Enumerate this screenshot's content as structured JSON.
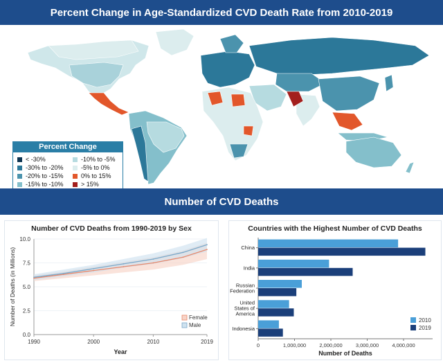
{
  "banner_map": "Percent Change in Age-Standardized CVD Death Rate from 2010-2019",
  "banner_deaths": "Number of CVD Deaths",
  "legend": {
    "title": "Percent Change",
    "items": [
      {
        "label": "< -30%",
        "color": "#0e3552"
      },
      {
        "label": "-30% to -20%",
        "color": "#2c7899"
      },
      {
        "label": "-20% to -15%",
        "color": "#4b93ad"
      },
      {
        "label": "-15% to  -10%",
        "color": "#84bfcb"
      },
      {
        "label": "-10% to -5%",
        "color": "#b6dbe0"
      },
      {
        "label": "-5% to 0%",
        "color": "#dcedee"
      },
      {
        "label": "0% to 15%",
        "color": "#e2572b"
      },
      {
        "label": "> 15%",
        "color": "#a31f1d"
      }
    ]
  },
  "chart_data": [
    {
      "type": "line",
      "title": "Number of CVD Deaths from 1990-2019 by Sex",
      "xlabel": "Year",
      "ylabel": "Number of Deaths (in Millions)",
      "x": [
        1990,
        1995,
        2000,
        2005,
        2010,
        2015,
        2019
      ],
      "x_ticks": [
        1990,
        2000,
        2010,
        2019
      ],
      "y_ticks": [
        "0.0",
        "2.5",
        "5.0",
        "7.5",
        "10.0"
      ],
      "xlim": [
        1990,
        2019
      ],
      "ylim": [
        0,
        10
      ],
      "series": [
        {
          "name": "Female",
          "color": "#e8886b",
          "band_color": "#f7d4c8",
          "values": [
            5.9,
            6.3,
            6.7,
            7.1,
            7.5,
            8.1,
            8.9
          ],
          "lower": [
            5.6,
            5.9,
            6.2,
            6.5,
            6.8,
            7.3,
            7.9
          ],
          "upper": [
            6.2,
            6.6,
            7.1,
            7.6,
            8.1,
            8.8,
            9.6
          ]
        },
        {
          "name": "Male",
          "color": "#7aa8c9",
          "band_color": "#cfe2ef",
          "values": [
            6.0,
            6.4,
            6.9,
            7.4,
            7.9,
            8.6,
            9.4
          ],
          "lower": [
            5.7,
            6.1,
            6.5,
            7.0,
            7.4,
            8.0,
            8.7
          ],
          "upper": [
            6.3,
            6.8,
            7.3,
            7.9,
            8.5,
            9.3,
            10.1
          ]
        }
      ],
      "legend_position": "bottom-right"
    },
    {
      "type": "bar",
      "orientation": "horizontal",
      "title": "Countries with the Highest Number of CVD Deaths",
      "xlabel": "Number of Deaths",
      "x_ticks": [
        "0",
        "1,000,000",
        "2,000,000",
        "3,000,000",
        "4,000,000"
      ],
      "xlim": [
        0,
        4800000
      ],
      "categories": [
        [
          "China"
        ],
        [
          "India"
        ],
        [
          "Russian",
          "Federation"
        ],
        [
          "United",
          "States of",
          "America"
        ],
        [
          "Indonesia"
        ]
      ],
      "series": [
        {
          "name": "2010",
          "color": "#4a9fd8",
          "values": [
            3850000,
            1950000,
            1200000,
            850000,
            570000
          ]
        },
        {
          "name": "2019",
          "color": "#1b3f7a",
          "values": [
            4600000,
            2600000,
            1050000,
            980000,
            680000
          ]
        }
      ],
      "legend_position": "bottom-right"
    }
  ]
}
